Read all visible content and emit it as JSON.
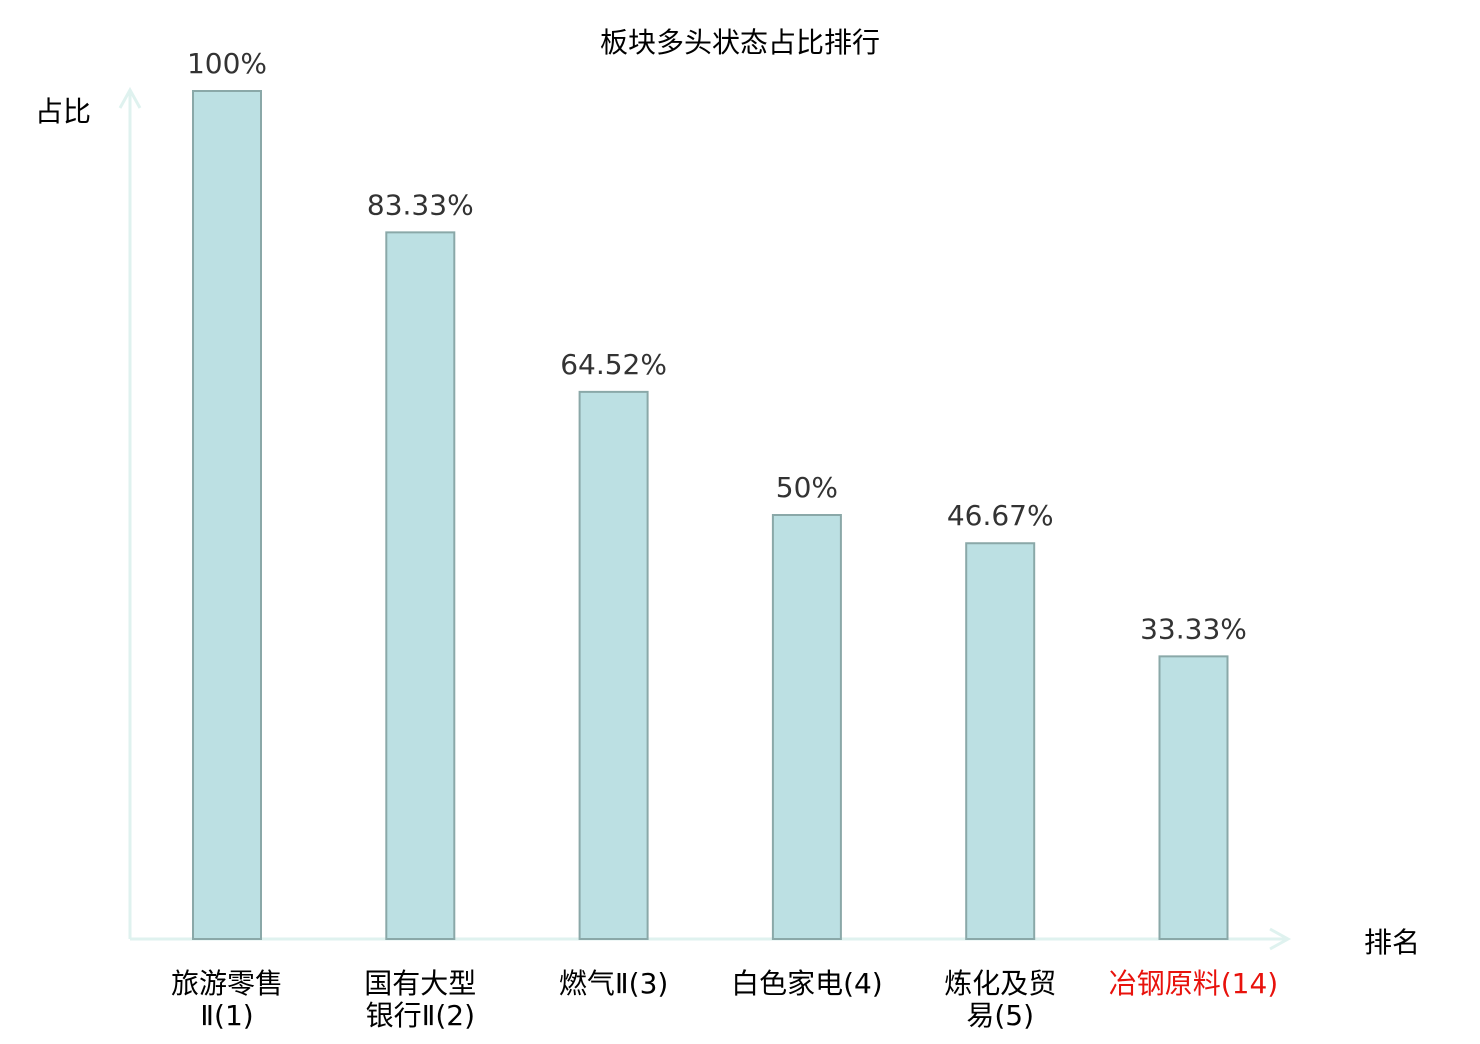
{
  "chart_data": {
    "type": "bar",
    "title": "板块多头状态占比排行",
    "ylabel": "占比",
    "xlabel": "排名",
    "ylim": [
      0,
      100
    ],
    "grid": false,
    "categories": [
      [
        "旅游零售",
        "Ⅱ(1)"
      ],
      [
        "国有大型",
        "银行Ⅱ(2)"
      ],
      [
        "燃气Ⅱ(3)"
      ],
      [
        "白色家电(4)"
      ],
      [
        "炼化及贸",
        "易(5)"
      ],
      [
        "冶钢原料(14)"
      ]
    ],
    "values": [
      100,
      83.33,
      64.52,
      50,
      46.67,
      33.33
    ],
    "data_labels": [
      "100%",
      "83.33%",
      "64.52%",
      "50%",
      "46.67%",
      "33.33%"
    ],
    "highlight_index": 5,
    "colors": {
      "bar_fill": "#bce0e3",
      "bar_stroke": "#8aa8a8",
      "axis": "#dff2ef",
      "label": "#000000",
      "highlight": "#e8120c",
      "data_label": "#333333"
    }
  }
}
